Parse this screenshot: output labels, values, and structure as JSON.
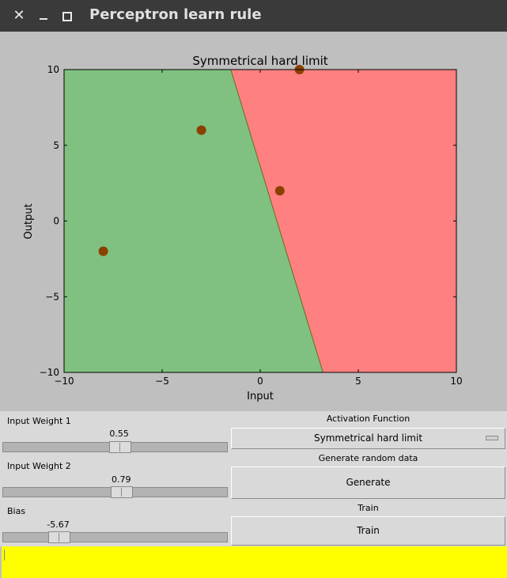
{
  "window": {
    "title": "Perceptron learn rule",
    "close_icon": "close-icon",
    "minimize_icon": "minimize-icon",
    "maximize_icon": "maximize-icon"
  },
  "chart_data": {
    "type": "scatter",
    "title": "Symmetrical hard limit",
    "xlabel": "Input",
    "ylabel": "Output",
    "xlim": [
      -10,
      10
    ],
    "ylim": [
      -10,
      10
    ],
    "xticks": [
      -10,
      -5,
      0,
      5,
      10
    ],
    "yticks": [
      -10,
      -5,
      0,
      5,
      10
    ],
    "xtick_labels": [
      "−10",
      "−5",
      "0",
      "5",
      "10"
    ],
    "ytick_labels": [
      "−10",
      "−5",
      "0",
      "5",
      "10"
    ],
    "points": [
      {
        "x": -8,
        "y": -2
      },
      {
        "x": -3,
        "y": 6
      },
      {
        "x": 1,
        "y": 2
      },
      {
        "x": 2,
        "y": 10
      }
    ],
    "decision_boundary": {
      "x_at_ymax": -1.5,
      "x_at_ymin": 3.2
    },
    "region_colors": {
      "left": "#80c080",
      "right": "#ff8080"
    },
    "point_color": "#8b4000"
  },
  "controls": {
    "weight1": {
      "label": "Input Weight 1",
      "value": "0.55",
      "fraction": 0.52
    },
    "weight2": {
      "label": "Input Weight 2",
      "value": "0.79",
      "fraction": 0.53
    },
    "bias": {
      "label": "Bias",
      "value": "-5.67",
      "fraction": 0.22
    },
    "activation": {
      "label": "Activation Function",
      "selected": "Symmetrical hard limit"
    },
    "generate": {
      "label": "Generate random data",
      "button": "Generate"
    },
    "train": {
      "label": "Train",
      "button": "Train"
    }
  },
  "status": {
    "text": ""
  }
}
